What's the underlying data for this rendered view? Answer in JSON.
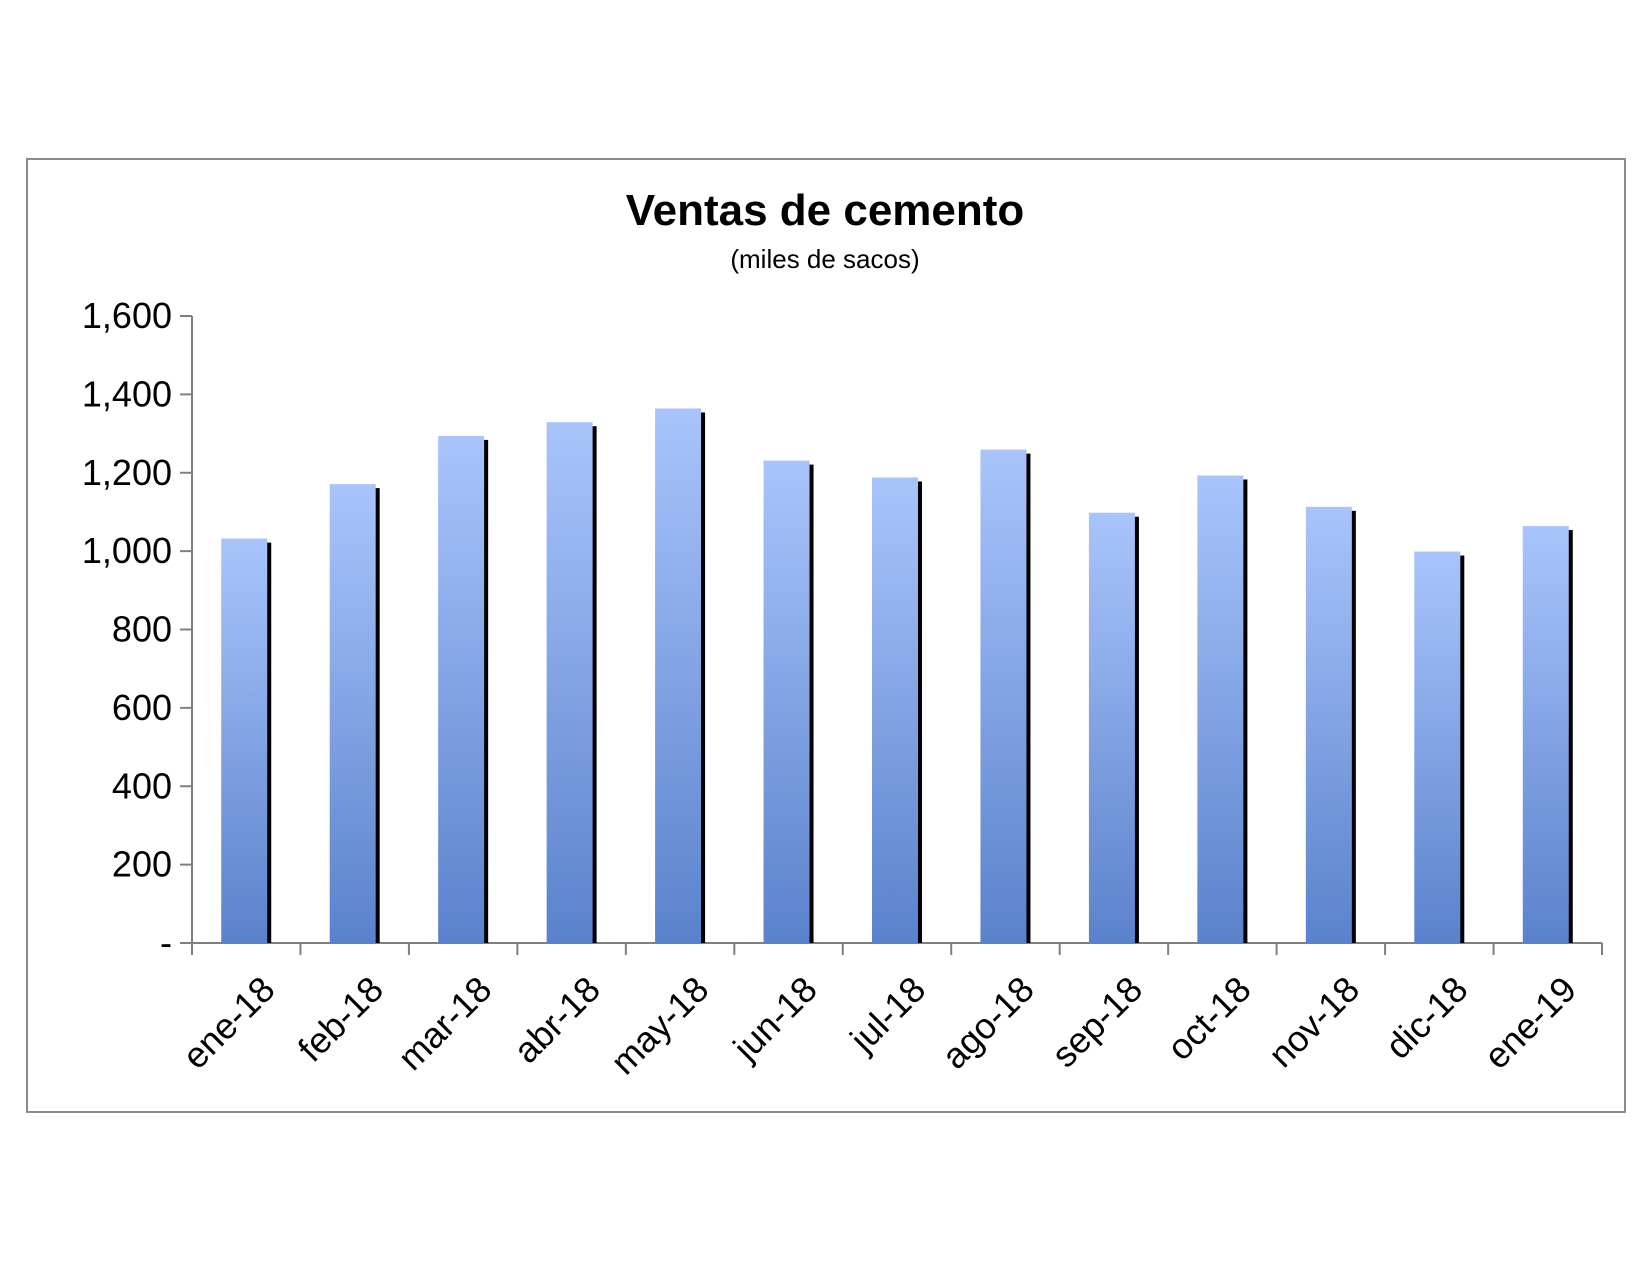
{
  "chart_data": {
    "type": "bar",
    "title": "Ventas de cemento",
    "subtitle": "(miles de sacos)",
    "xlabel": "",
    "ylabel": "",
    "categories": [
      "ene-18",
      "feb-18",
      "mar-18",
      "abr-18",
      "may-18",
      "jun-18",
      "jul-18",
      "ago-18",
      "sep-18",
      "oct-18",
      "nov-18",
      "dic-18",
      "ene-19"
    ],
    "values": [
      1032,
      1171,
      1294,
      1329,
      1364,
      1231,
      1188,
      1259,
      1098,
      1193,
      1113,
      999,
      1064
    ],
    "ylim": [
      0,
      1600
    ],
    "yticks": [
      {
        "value": 0,
        "label": "-"
      },
      {
        "value": 200,
        "label": "200"
      },
      {
        "value": 400,
        "label": "400"
      },
      {
        "value": 600,
        "label": "600"
      },
      {
        "value": 800,
        "label": "800"
      },
      {
        "value": 1000,
        "label": "1,000"
      },
      {
        "value": 1200,
        "label": "1,200"
      },
      {
        "value": 1400,
        "label": "1,400"
      },
      {
        "value": 1600,
        "label": "1,600"
      }
    ],
    "grid": false,
    "legend": "none",
    "colors": {
      "bar_top": "#a9c4fb",
      "bar_bottom": "#5a82cc",
      "bar_shadow": "#000000",
      "axis": "#7f7f7f",
      "frame": "#8c8c8c"
    }
  }
}
